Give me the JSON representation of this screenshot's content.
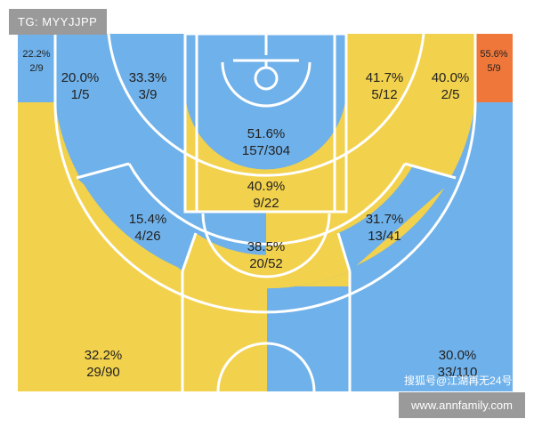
{
  "badges": {
    "top_left": "TG: MYYJJPP",
    "bottom_right": "www.annfamily.com",
    "credit": "搜狐号@江湖再无24号"
  },
  "colors": {
    "above": "#f2d14c",
    "below": "#6fb1ea",
    "hot": "#f0773a",
    "lines": "#ffffff",
    "background": "#ffffff"
  },
  "chart_data": {
    "type": "heatmap",
    "zones": [
      {
        "id": "left-corner-three",
        "pct": "22.2%",
        "made": "2/9",
        "made_count": 2,
        "attempts": 9,
        "level": "below"
      },
      {
        "id": "right-corner-three",
        "pct": "55.6%",
        "made": "5/9",
        "made_count": 5,
        "attempts": 9,
        "level": "hot"
      },
      {
        "id": "left-baseline-long-two",
        "pct": "20.0%",
        "made": "1/5",
        "made_count": 1,
        "attempts": 5,
        "level": "below"
      },
      {
        "id": "left-short-baseline",
        "pct": "33.3%",
        "made": "3/9",
        "made_count": 3,
        "attempts": 9,
        "level": "below"
      },
      {
        "id": "restricted-area",
        "pct": "51.6%",
        "made": "157/304",
        "made_count": 157,
        "attempts": 304,
        "level": "below"
      },
      {
        "id": "right-short-baseline",
        "pct": "41.7%",
        "made": "5/12",
        "made_count": 5,
        "attempts": 12,
        "level": "above"
      },
      {
        "id": "right-baseline-long-two",
        "pct": "40.0%",
        "made": "2/5",
        "made_count": 2,
        "attempts": 5,
        "level": "above"
      },
      {
        "id": "paint-non-ra",
        "pct": "40.9%",
        "made": "9/22",
        "made_count": 9,
        "attempts": 22,
        "level": "above"
      },
      {
        "id": "left-elbow-long-two",
        "pct": "15.4%",
        "made": "4/26",
        "made_count": 4,
        "attempts": 26,
        "level": "below"
      },
      {
        "id": "right-elbow-long-two",
        "pct": "31.7%",
        "made": "13/41",
        "made_count": 13,
        "attempts": 41,
        "level": "below"
      },
      {
        "id": "top-key-long-two",
        "pct": "38.5%",
        "made": "20/52",
        "made_count": 20,
        "attempts": 52,
        "level": "above"
      },
      {
        "id": "left-wing-three",
        "pct": "32.2%",
        "made": "29/90",
        "made_count": 29,
        "attempts": 90,
        "level": "above"
      },
      {
        "id": "right-wing-three",
        "pct": "30.0%",
        "made": "33/110",
        "made_count": 33,
        "attempts": 110,
        "level": "below"
      }
    ]
  }
}
